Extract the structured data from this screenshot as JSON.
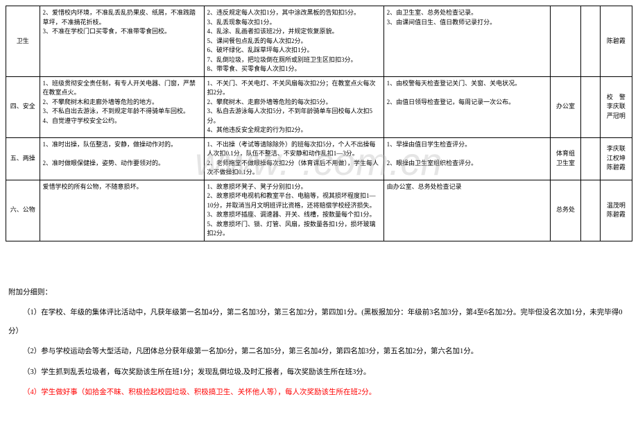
{
  "watermark": "www.         .com.cn",
  "rows": [
    {
      "cat": "卫生",
      "requirements": "2、爱惜校内环境，不准乱丢乱扔果皮、纸屑，不准践踏草坪，不准摘花折枝。\n3、不准在学校门口买零食，不准带零食回校。",
      "criteria": "2、违反规定每人次扣1分，其中涂改黑板的告知扣5分。\n3、乱丢现象每次扣1分。\n4、乱涂、乱画者扣该班2分，并规定恢复原貌。\n5、课间餐包点乱丢的每人次扣2分。\n6、破坏绿化、乱踩草坪每人次扣1分。\n7、乱倒垃圾，把垃圾倒在厕所或别班卫生区扣扣3分。\n8、带零食、买零食每人次扣1分。",
      "method": "2、由卫生室、总务处检查记录。\n3、由课间值日生、值日教师记录打分。",
      "dept": "",
      "score": "",
      "resp": "陈碧霞"
    },
    {
      "cat": "四、安全",
      "requirements": "1、班级贯彻安全责任制，有专人开关电器、门窗，严禁在教室点火。\n2、不攀爬树木和走廊外墙等危险的地方。\n3、不私自出去游泳，不到规定年龄不得骑单车回校。\n4、自觉遵守学校安全公约。",
      "criteria": "1、不关门、不关电灯、不关风扇每次扣2分；在教室点火每次扣2分。\n2、攀爬树木、走廊外墙等危险的每次扣5分。\n3、私自去游泳每人次扣5分，不到年龄骑单车回校每人次扣5分。\n4、其他违反安全规定的行为扣2分。",
      "method": "1、由校警每天检查登记关门、关窗、关电状况。\n\n2、由值日领导检查登记，每周记录一次公布。",
      "dept": "办公室",
      "score": "",
      "resp": "校　警\n李庆联\n严冠明"
    },
    {
      "cat": "五、两操",
      "requirements": "1、准时出操，队伍整洁，安静，做操动作对的。\n\n2、准时做眼保健操，姿势、动作要领对的。",
      "criteria": "1、不出操（考试等请除除外）的班每次扣5分，个人不出操每人次扣0.1分，队伍不整洁、不安静和动作乱扣1—3分。\n2、老师拖堂不做眼操每次扣2分（体育课后不用做），学生每人次不做操扣0.1分。",
      "method": "1、早操由值日学生检查评分。\n\n2、眼操由卫生室组织检查评分。",
      "dept": "体育组\n卫生室",
      "score": "",
      "resp": "李庆联\n江权坤\n陈碧霞"
    },
    {
      "cat": "六、公物",
      "requirements": "爱惜学校的所有公物，不随意损坏。",
      "criteria": "1、故意损坏凳子、凳子分别扣1分。\n2、故意损坏电视机和教室平台、电脑等，视其损坏程度扣1—10分，并取消当月文明班评比资格，还将赔偿学校经济损失。\n3、故意损坏插座、调速器、开关、线槽，按数量每个扣1分。\n5、故意损坏门、锁、灯管、风扇，按数量各扣1分，损坏玻璃扣2分。",
      "method": "由办公室、总务处检查记录",
      "dept": "总务处",
      "score": "",
      "resp": "温茂明\n陈碧霞"
    }
  ],
  "addenda": {
    "title": "附加分细则：",
    "items": [
      "（1）在学校、年级的集体评比活动中，凡获年级第一名加4分，第二名加3分，第三名加2分，第四加1分。(黑板报加分：年级前3名加3分，第4至6名加2分。完毕但没名次加1分，未完毕得0分）",
      "（2）参与学校运动会等大型活动，凡团体总分获年级第一名加6分，第二名加5分，第三名加4分，第四名加3分，第五名加2分，第六名加1分。",
      "（3）学生抓到乱丢垃圾者，每次奖励该生所在班1分；发现乱倒垃圾,及时汇报者，每次奖励该生所在班3分。",
      "（4）学生做好事（如拾金不昧、积极捡起校园垃圾、积极搞卫生、关怀他人等），每人次奖励该生所在班2分。"
    ]
  },
  "colors": {
    "red": "#ff0000",
    "border": "#000000",
    "bg": "#ffffff"
  }
}
